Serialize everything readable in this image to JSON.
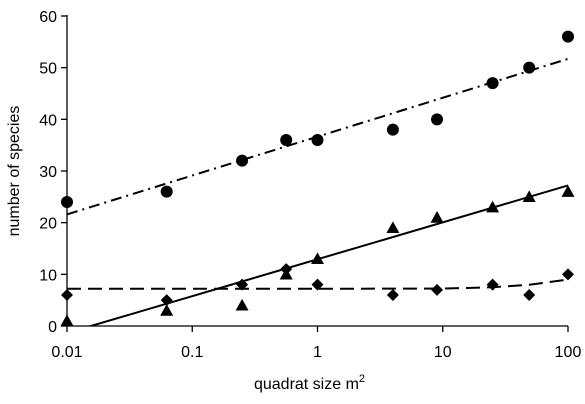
{
  "chart_data": {
    "type": "scatter",
    "x_scale": "log",
    "xlabel": "quadrat size m",
    "xlabel_sup": "2",
    "ylabel": "number of species",
    "xlim": [
      0.01,
      100
    ],
    "ylim": [
      0,
      60
    ],
    "x_ticks": [
      0.01,
      0.1,
      1,
      10,
      100
    ],
    "x_tick_labels": [
      "0.01",
      "0.1",
      "1",
      "10",
      "100"
    ],
    "y_ticks": [
      0,
      10,
      20,
      30,
      40,
      50,
      60
    ],
    "y_tick_labels": [
      "0",
      "10",
      "20",
      "30",
      "40",
      "50",
      "60"
    ],
    "grid": false,
    "legend": "none",
    "series": [
      {
        "marker": "circle",
        "fit_line": "dash-dot",
        "points": [
          {
            "x": 0.01,
            "y": 24
          },
          {
            "x": 0.0625,
            "y": 26
          },
          {
            "x": 0.25,
            "y": 32
          },
          {
            "x": 0.5625,
            "y": 36
          },
          {
            "x": 1,
            "y": 36
          },
          {
            "x": 4,
            "y": 38
          },
          {
            "x": 9,
            "y": 40
          },
          {
            "x": 25,
            "y": 47
          },
          {
            "x": 49,
            "y": 50
          },
          {
            "x": 100,
            "y": 56
          }
        ],
        "fit": [
          {
            "x": 0.01,
            "y": 21.6
          },
          {
            "x": 100,
            "y": 51.7
          }
        ]
      },
      {
        "marker": "triangle",
        "fit_line": "solid",
        "points": [
          {
            "x": 0.01,
            "y": 1
          },
          {
            "x": 0.0625,
            "y": 3
          },
          {
            "x": 0.25,
            "y": 4
          },
          {
            "x": 0.5625,
            "y": 10
          },
          {
            "x": 1,
            "y": 13
          },
          {
            "x": 4,
            "y": 19
          },
          {
            "x": 9,
            "y": 21
          },
          {
            "x": 25,
            "y": 23
          },
          {
            "x": 49,
            "y": 25
          },
          {
            "x": 100,
            "y": 26
          }
        ],
        "fit": [
          {
            "x": 0.0132,
            "y": -0.5
          },
          {
            "x": 100,
            "y": 27.2
          }
        ]
      },
      {
        "marker": "diamond",
        "fit_line": "dashed",
        "points": [
          {
            "x": 0.01,
            "y": 6
          },
          {
            "x": 0.0625,
            "y": 5
          },
          {
            "x": 0.25,
            "y": 8
          },
          {
            "x": 0.5625,
            "y": 11
          },
          {
            "x": 1,
            "y": 8
          },
          {
            "x": 4,
            "y": 6
          },
          {
            "x": 9,
            "y": 7
          },
          {
            "x": 25,
            "y": 8
          },
          {
            "x": 49,
            "y": 6
          },
          {
            "x": 100,
            "y": 10
          }
        ],
        "fit": [
          {
            "x": 0.01,
            "y": 7.2
          },
          {
            "x": 1,
            "y": 7.2
          },
          {
            "x": 10,
            "y": 7.25
          },
          {
            "x": 25,
            "y": 7.5
          },
          {
            "x": 50,
            "y": 8.0
          },
          {
            "x": 100,
            "y": 9.0
          }
        ]
      }
    ]
  }
}
